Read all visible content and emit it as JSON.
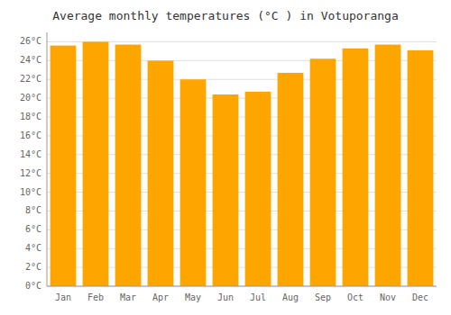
{
  "chart_data": {
    "type": "bar",
    "title": "Average monthly temperatures (°C ) in Votuporanga",
    "categories": [
      "Jan",
      "Feb",
      "Mar",
      "Apr",
      "May",
      "Jun",
      "Jul",
      "Aug",
      "Sep",
      "Oct",
      "Nov",
      "Dec"
    ],
    "values": [
      25.6,
      26.0,
      25.7,
      24.0,
      22.0,
      20.4,
      20.7,
      22.7,
      24.2,
      25.3,
      25.7,
      25.1
    ],
    "color": "#FFA500",
    "ylim": [
      0,
      27
    ],
    "yticks": [
      {
        "value": 0,
        "label": "0°C"
      },
      {
        "value": 2,
        "label": "2°C"
      },
      {
        "value": 4,
        "label": "4°C"
      },
      {
        "value": 6,
        "label": "6°C"
      },
      {
        "value": 8,
        "label": "8°C"
      },
      {
        "value": 10,
        "label": "10°C"
      },
      {
        "value": 12,
        "label": "12°C"
      },
      {
        "value": 14,
        "label": "14°C"
      },
      {
        "value": 16,
        "label": "16°C"
      },
      {
        "value": 18,
        "label": "18°C"
      },
      {
        "value": 20,
        "label": "20°C"
      },
      {
        "value": 22,
        "label": "22°C"
      },
      {
        "value": 24,
        "label": "24°C"
      },
      {
        "value": 26,
        "label": "26°C"
      }
    ],
    "grid": true
  }
}
